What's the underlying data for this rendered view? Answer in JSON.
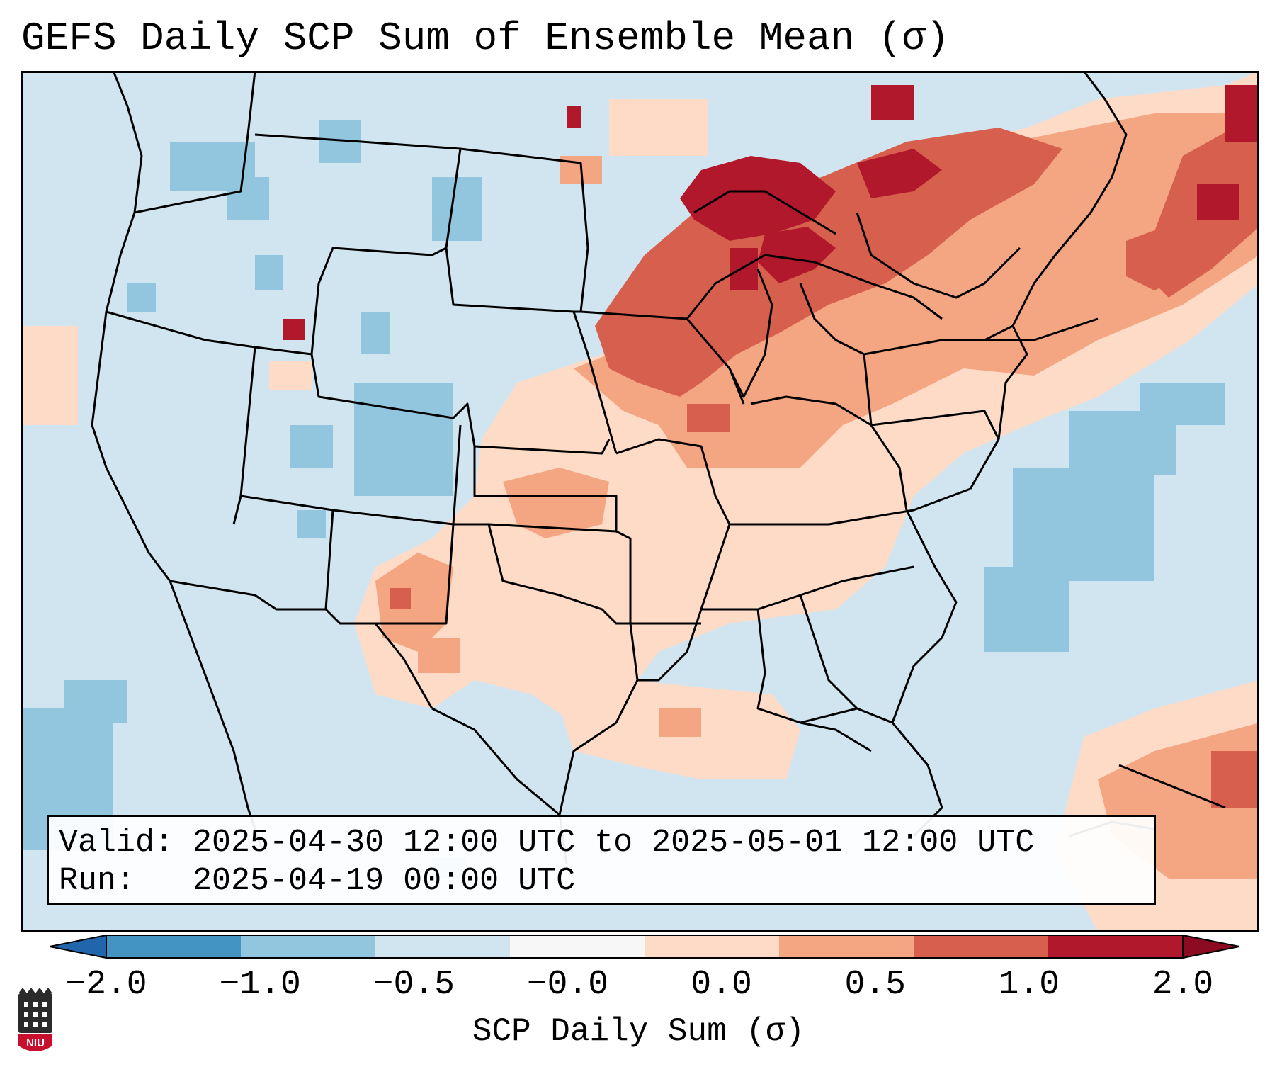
{
  "title": "GEFS Daily SCP Sum of Ensemble Mean (σ)",
  "info": {
    "valid": "Valid: 2025-04-30 12:00 UTC to 2025-05-01 12:00 UTC",
    "run": "Run:   2025-04-19 00:00 UTC"
  },
  "colorbar": {
    "label": "SCP Daily Sum (σ)",
    "ticks": [
      "−2.0",
      "−1.0",
      "−0.5",
      "−0.0",
      "0.0",
      "0.5",
      "1.0",
      "2.0"
    ],
    "colors": [
      "#4393c3",
      "#92c5de",
      "#d1e5f0",
      "#f7f7f7",
      "#fddbc7",
      "#f4a582",
      "#d6604d",
      "#b2182b"
    ],
    "extend_low_color": "#2166ac",
    "extend_high_color": "#8c0a22"
  },
  "logo": {
    "text": "NIU",
    "colors": {
      "dark": "#2b2b2b",
      "red": "#c8102e"
    }
  },
  "map": {
    "background_color": "#d1e5f0",
    "regions": [
      {
        "name": "great-lakes-max",
        "level": "very-high"
      },
      {
        "name": "upper-midwest",
        "level": "high"
      },
      {
        "name": "ohio-valley",
        "level": "medium"
      },
      {
        "name": "southern-plains",
        "level": "medium"
      },
      {
        "name": "gulf-coast",
        "level": "low-positive"
      },
      {
        "name": "western-us",
        "level": "low-negative"
      },
      {
        "name": "atlantic",
        "level": "negative"
      }
    ]
  }
}
